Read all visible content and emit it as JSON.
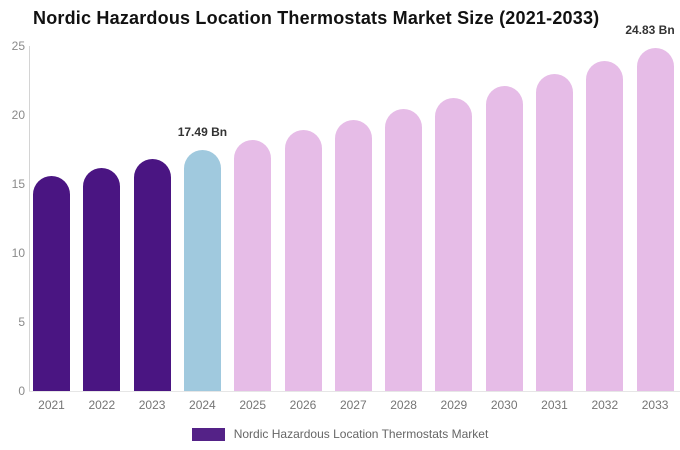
{
  "title": "Nordic Hazardous Location Thermostats Market Size (2021-2033)",
  "chart_data": {
    "type": "bar",
    "title": "Nordic Hazardous Location Thermostats Market Size (2021-2033)",
    "categories": [
      "2021",
      "2022",
      "2023",
      "2024",
      "2025",
      "2026",
      "2027",
      "2028",
      "2029",
      "2030",
      "2031",
      "2032",
      "2033"
    ],
    "series": [
      {
        "name": "Nordic Hazardous Location Thermostats Market",
        "values": [
          15.56,
          16.18,
          16.82,
          17.49,
          18.18,
          18.9,
          19.66,
          20.44,
          21.25,
          22.09,
          22.97,
          23.88,
          24.83
        ]
      }
    ],
    "roles": [
      "historical",
      "historical",
      "historical",
      "highlight",
      "forecast",
      "forecast",
      "forecast",
      "forecast",
      "forecast",
      "forecast",
      "forecast",
      "forecast",
      "forecast"
    ],
    "annotations": [
      {
        "category": "2024",
        "text": "17.49 Bn"
      },
      {
        "category": "2033",
        "text": "24.83 Bn"
      }
    ],
    "unit": "Bn",
    "xlabel": "",
    "ylabel": "",
    "ylim": [
      0,
      25
    ],
    "yticks": [
      0,
      5,
      10,
      15,
      20,
      25
    ],
    "grid": false,
    "legend_position": "bottom",
    "colors": {
      "historical": "#4a1582",
      "highlight": "#a0c9de",
      "forecast": "#e6bce7",
      "legend_swatch": "#542287",
      "axis_line": "#d4d4d4",
      "baseline": "#e6e6e6",
      "y_tick_label": "#8a8a8a",
      "x_tick_label": "#757575",
      "annotation": "#333333",
      "title": "#111111",
      "legend_text": "#666666"
    }
  }
}
